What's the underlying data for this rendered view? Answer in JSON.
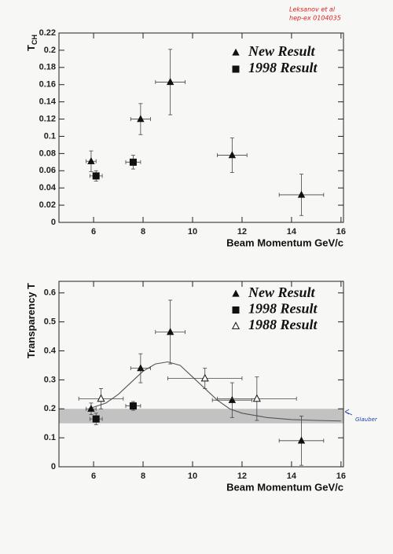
{
  "chart_data": [
    {
      "type": "scatter",
      "y_label": "T",
      "y_label_sub": "CH",
      "x_label": "Beam Momentum GeV/c",
      "xlim": [
        4.6,
        16.1
      ],
      "xticks": [
        6,
        8,
        10,
        12,
        14,
        16
      ],
      "ylim": [
        0,
        0.22
      ],
      "yticks": [
        0,
        0.02,
        0.04,
        0.06,
        0.08,
        0.1,
        0.12,
        0.14,
        0.16,
        0.18,
        0.2,
        0.22
      ],
      "legend": "upper right",
      "grid": false,
      "annotations": [
        "Leksanov et al",
        "hep-ex 0104035"
      ],
      "series": [
        {
          "name": "New Result",
          "color": "#111111",
          "marker": "triangle",
          "x": [
            5.9,
            7.9,
            9.1,
            11.6,
            14.4
          ],
          "values": [
            0.071,
            0.12,
            0.163,
            0.078,
            0.032
          ],
          "yerr": [
            0.012,
            0.018,
            0.038,
            0.02,
            0.024
          ],
          "xerr": [
            0.2,
            0.4,
            0.6,
            0.6,
            0.9
          ]
        },
        {
          "name": "1998 Result",
          "color": "#111111",
          "marker": "square",
          "x": [
            6.1,
            7.6
          ],
          "values": [
            0.054,
            0.07
          ],
          "yerr": [
            0.006,
            0.008
          ],
          "xerr": [
            0.25,
            0.3
          ]
        }
      ]
    },
    {
      "type": "scatter",
      "y_label": "Transparency T",
      "x_label": "Beam Momentum GeV/c",
      "xlim": [
        4.6,
        16.1
      ],
      "xticks": [
        6,
        8,
        10,
        12,
        14,
        16
      ],
      "ylim": [
        0,
        0.64
      ],
      "yticks": [
        0,
        0.1,
        0.2,
        0.3,
        0.4,
        0.5,
        0.6
      ],
      "legend": "upper right",
      "grid": false,
      "band": [
        0.15,
        0.2
      ],
      "band_color": "#b9b9b9",
      "annotations": [
        "Glauber"
      ],
      "curve": {
        "color": "#555555",
        "x": [
          5.8,
          6.5,
          7,
          7.5,
          8,
          8.5,
          9,
          9.5,
          10,
          10.5,
          11,
          11.5,
          12,
          13,
          14,
          15,
          16
        ],
        "values": [
          0.2,
          0.22,
          0.25,
          0.29,
          0.33,
          0.355,
          0.362,
          0.35,
          0.31,
          0.27,
          0.23,
          0.2,
          0.185,
          0.17,
          0.163,
          0.16,
          0.158
        ]
      },
      "series": [
        {
          "name": "New Result",
          "color": "#111111",
          "marker": "triangle",
          "x": [
            5.9,
            7.9,
            9.1,
            11.6,
            14.4
          ],
          "values": [
            0.2,
            0.34,
            0.465,
            0.23,
            0.09
          ],
          "yerr": [
            0.02,
            0.05,
            0.11,
            0.06,
            0.085
          ],
          "xerr": [
            0.2,
            0.4,
            0.6,
            0.8,
            0.9
          ]
        },
        {
          "name": "1998 Result",
          "color": "#111111",
          "marker": "square",
          "x": [
            6.1,
            7.6
          ],
          "values": [
            0.165,
            0.21
          ],
          "yerr": [
            0.02,
            0.015
          ],
          "xerr": [
            0.25,
            0.3
          ]
        },
        {
          "name": "1988 Result",
          "color": "#111111",
          "marker": "triangle-open",
          "x": [
            6.3,
            10.5,
            12.6
          ],
          "values": [
            0.235,
            0.305,
            0.235
          ],
          "yerr": [
            0.035,
            0.035,
            0.075
          ],
          "xerr": [
            0.9,
            1.5,
            1.6
          ]
        }
      ]
    }
  ]
}
